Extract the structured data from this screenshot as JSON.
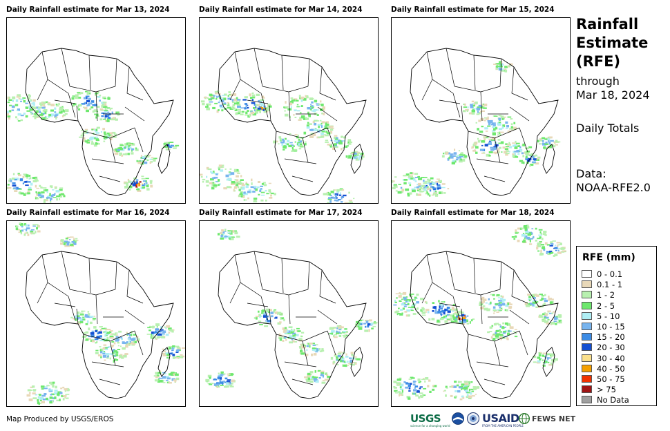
{
  "panels": [
    {
      "title": "Daily Rainfall estimate for Mar 13, 2024"
    },
    {
      "title": "Daily Rainfall estimate for Mar 14, 2024"
    },
    {
      "title": "Daily Rainfall estimate for Mar 15, 2024"
    },
    {
      "title": "Daily Rainfall estimate for Mar 16, 2024"
    },
    {
      "title": "Daily Rainfall estimate for Mar 17, 2024"
    },
    {
      "title": "Daily Rainfall estimate for Mar 18, 2024"
    }
  ],
  "side": {
    "title_1": "Rainfall",
    "title_2": "Estimate",
    "title_3": "(RFE)",
    "through_1": "through",
    "through_2": "Mar 18, 2024",
    "period": "Daily Totals",
    "data_1": "Data:",
    "data_2": "NOAA-RFE2.0"
  },
  "legend": {
    "title": "RFE (mm)",
    "items": [
      {
        "label": "0 - 0.1",
        "color": "#ffffff"
      },
      {
        "label": "0.1 - 1",
        "color": "#e8d8b8"
      },
      {
        "label": "1 - 2",
        "color": "#b8f0b0"
      },
      {
        "label": "2 - 5",
        "color": "#6ee86e"
      },
      {
        "label": "5 - 10",
        "color": "#b0eef4"
      },
      {
        "label": "10 - 15",
        "color": "#78b4ee"
      },
      {
        "label": "15 - 20",
        "color": "#3c8ce6"
      },
      {
        "label": "20 - 30",
        "color": "#1450d2"
      },
      {
        "label": "30 - 40",
        "color": "#fae08c"
      },
      {
        "label": "40 - 50",
        "color": "#f5a000"
      },
      {
        "label": "50 - 75",
        "color": "#f03200"
      },
      {
        "label": "> 75",
        "color": "#a01414"
      },
      {
        "label": "No Data",
        "color": "#a0a0a0"
      }
    ]
  },
  "footer": "Map Produced by USGS/EROS",
  "logos": {
    "usgs": "USGS",
    "usgs_tagline": "science for a changing world",
    "noaa_icon": "noaa-logo-icon",
    "seal_icon": "commerce-seal-icon",
    "usaid": "USAID",
    "usaid_tagline": "FROM THE AMERICAN PEOPLE",
    "fews": "FEWS NET",
    "globe_icon": "globe-icon"
  }
}
